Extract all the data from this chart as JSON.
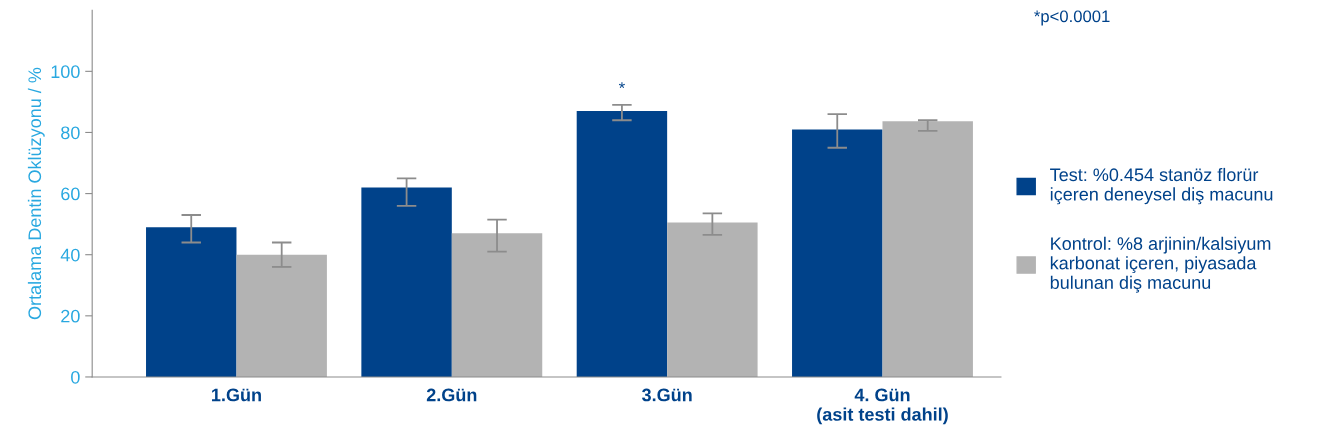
{
  "chart_data": {
    "type": "bar",
    "ylabel": "Ortalama Dentin Oklüzyonu / %",
    "categories": [
      "1.Gün",
      "2.Gün",
      "3.Gün",
      "4. Gün\n(asit testi dahil)"
    ],
    "series": [
      {
        "name": "Test: %0.454 stanöz florür\niçeren deneysel diş macunu",
        "color": "#00428a",
        "values": [
          49,
          62,
          87,
          81
        ],
        "errors": [
          [
            44,
            53
          ],
          [
            56,
            65
          ],
          [
            84,
            89
          ],
          [
            75,
            86
          ]
        ]
      },
      {
        "name": "Kontrol: %8 arjinin/kalsiyum\nkarbonat içeren, piyasada\nbulunan diş macunu",
        "color": "#b3b3b3",
        "values": [
          40,
          47,
          50.5,
          83.7
        ],
        "errors": [
          [
            36,
            44
          ],
          [
            41,
            51.5
          ],
          [
            46.5,
            53.5
          ],
          [
            80.5,
            84
          ]
        ]
      }
    ],
    "ylim": [
      0,
      120
    ],
    "yticks": [
      0,
      20,
      40,
      60,
      80,
      100
    ],
    "grid": false,
    "legend": "right",
    "annotations": [
      "*p<0.0001",
      {
        "text": "*",
        "x": "3.Gün",
        "y": 87
      }
    ]
  }
}
